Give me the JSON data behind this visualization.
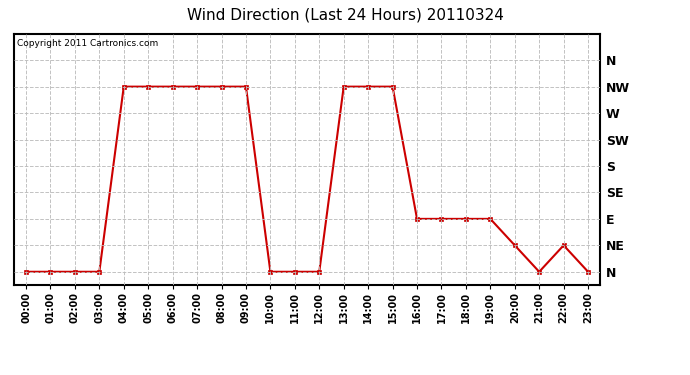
{
  "title": "Wind Direction (Last 24 Hours) 20110324",
  "copyright": "Copyright 2011 Cartronics.com",
  "background_color": "#ffffff",
  "line_color": "#cc0000",
  "grid_color": "#bbbbbb",
  "x_labels": [
    "00:00",
    "01:00",
    "02:00",
    "03:00",
    "04:00",
    "05:00",
    "06:00",
    "07:00",
    "08:00",
    "09:00",
    "10:00",
    "11:00",
    "12:00",
    "13:00",
    "14:00",
    "15:00",
    "16:00",
    "17:00",
    "18:00",
    "19:00",
    "20:00",
    "21:00",
    "22:00",
    "23:00"
  ],
  "y_tick_labels": [
    "N",
    "NW",
    "W",
    "SW",
    "S",
    "SE",
    "E",
    "NE",
    "N"
  ],
  "y_tick_positions": [
    8,
    7,
    6,
    5,
    4,
    3,
    2,
    1,
    0
  ],
  "hours": [
    0,
    1,
    2,
    3,
    4,
    5,
    6,
    7,
    8,
    9,
    10,
    11,
    12,
    13,
    14,
    15,
    16,
    17,
    18,
    19,
    20,
    21,
    22,
    23
  ],
  "wind_values": [
    0,
    0,
    0,
    0,
    7,
    7,
    7,
    7,
    7,
    7,
    0,
    0,
    0,
    7,
    7,
    7,
    2,
    2,
    2,
    2,
    1,
    0,
    1,
    0
  ],
  "ylim": [
    -0.5,
    9.0
  ],
  "xlim": [
    -0.5,
    23.5
  ]
}
